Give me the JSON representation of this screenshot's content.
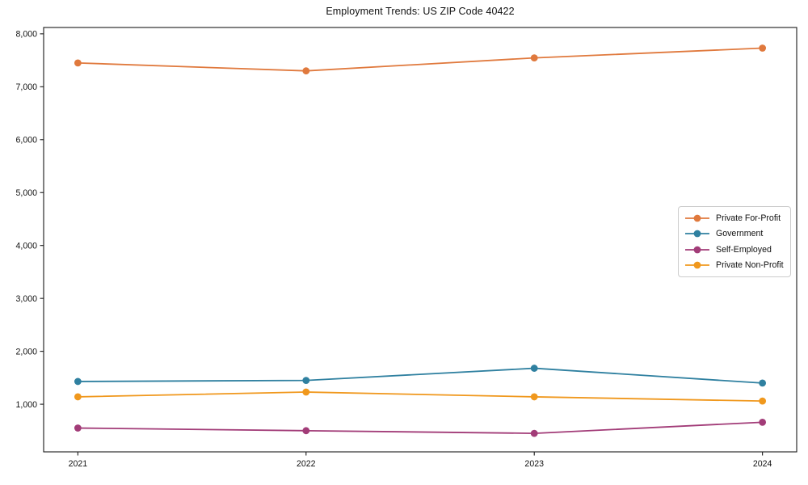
{
  "chart_data": {
    "type": "line",
    "title": "Employment Trends: US ZIP Code 40422",
    "xlabel": "",
    "ylabel": "",
    "x": [
      2021,
      2022,
      2023,
      2024
    ],
    "x_tick_labels": [
      "2021",
      "2022",
      "2023",
      "2024"
    ],
    "series": [
      {
        "name": "Private For-Profit",
        "color": "#e0793d",
        "values": [
          7450,
          7300,
          7545,
          7730
        ]
      },
      {
        "name": "Government",
        "color": "#2f80a0",
        "values": [
          1430,
          1450,
          1680,
          1400
        ]
      },
      {
        "name": "Self-Employed",
        "color": "#a23c78",
        "values": [
          550,
          500,
          450,
          660
        ]
      },
      {
        "name": "Private Non-Profit",
        "color": "#f0981d",
        "values": [
          1140,
          1230,
          1140,
          1060
        ]
      }
    ],
    "y_ticks": [
      1000,
      2000,
      3000,
      4000,
      5000,
      6000,
      7000,
      8000
    ],
    "y_tick_labels": [
      "1,000",
      "2,000",
      "3,000",
      "4,000",
      "5,000",
      "6,000",
      "7,000",
      "8,000"
    ],
    "ylim": [
      100,
      8120
    ],
    "xlim": [
      2020.85,
      2024.15
    ],
    "grid": false,
    "legend_position": "center-right",
    "spine_color": "#1a1a1a",
    "background_color": "#ffffff"
  }
}
